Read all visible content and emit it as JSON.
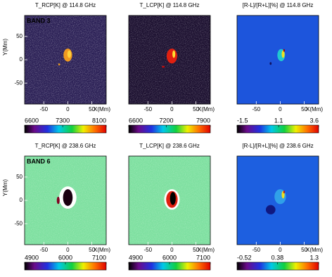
{
  "chart_data": [
    {
      "type": "image",
      "title": "T_RCP[K] @ 114.8 GHz",
      "annotation": "BAND 3",
      "annotation_color": "#ffd700",
      "xlim": [
        -90,
        80
      ],
      "xticks": [
        -50,
        0,
        50
      ],
      "xlabel": "X(Mm)",
      "ylim": [
        -95,
        95
      ],
      "yticks": [
        -50,
        0,
        50
      ],
      "ylabel": "Y(Mm)",
      "colorbar": {
        "lim": [
          6600,
          8100
        ],
        "ticks": [
          6600,
          7300,
          8100
        ]
      }
    },
    {
      "type": "image",
      "title": "T_LCP[K] @ 114.8 GHz",
      "xlim": [
        -90,
        80
      ],
      "xticks": [
        -50,
        0,
        50
      ],
      "xlabel": "X(Mm)",
      "ylim": [
        -95,
        95
      ],
      "colorbar": {
        "lim": [
          6600,
          7900
        ],
        "ticks": [
          6600,
          7200,
          7900
        ]
      }
    },
    {
      "type": "image",
      "title": "[R-L]/[R+L][%] @ 114.8 GHz",
      "xlim": [
        -90,
        80
      ],
      "xticks": [
        -50,
        0,
        50
      ],
      "xlabel": "X(Mm)",
      "ylim": [
        -95,
        95
      ],
      "colorbar": {
        "lim": [
          -1.5,
          3.6
        ],
        "ticks": [
          -1.5,
          1.1,
          3.6
        ]
      }
    },
    {
      "type": "image",
      "title": "T_RCP[K] @ 238.6 GHz",
      "annotation": "BAND 6",
      "annotation_color": "#e82020",
      "xlim": [
        -90,
        80
      ],
      "xticks": [
        -50,
        0,
        50
      ],
      "xlabel": "X(Mm)",
      "ylim": [
        -95,
        95
      ],
      "yticks": [
        -50,
        0,
        50
      ],
      "ylabel": "Y(Mm)",
      "colorbar": {
        "lim": [
          4900,
          7100
        ],
        "ticks": [
          4900,
          6000,
          7100
        ]
      }
    },
    {
      "type": "image",
      "title": "T_LCP[K] @ 238.6 GHz",
      "xlim": [
        -90,
        80
      ],
      "xticks": [
        -50,
        0,
        50
      ],
      "xlabel": "X(Mm)",
      "ylim": [
        -95,
        95
      ],
      "colorbar": {
        "lim": [
          4900,
          7100
        ],
        "ticks": [
          4900,
          6000,
          7100
        ]
      }
    },
    {
      "type": "image",
      "title": "[R-L]/[R+L][%] @ 238.6 GHz",
      "xlim": [
        -90,
        80
      ],
      "xticks": [
        -50,
        0,
        50
      ],
      "xlabel": "X(Mm)",
      "ylim": [
        -95,
        95
      ],
      "colorbar": {
        "lim": [
          -0.52,
          1.3
        ],
        "ticks": [
          -0.52,
          0.38,
          1.3
        ]
      }
    }
  ]
}
